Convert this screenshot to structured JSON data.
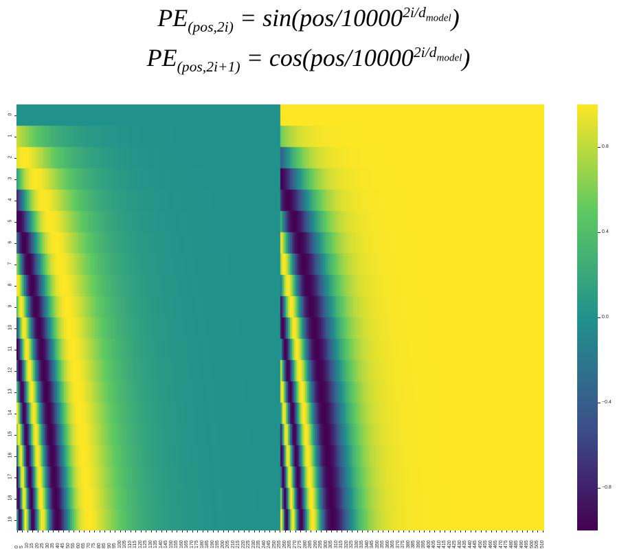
{
  "formulas": {
    "sin": {
      "lhs": "PE",
      "lhs_sub": "(pos,2i)",
      "rhs_fn": "= sin(pos/10000",
      "exp": "2i/d",
      "exp_sub": "model",
      "close": ")"
    },
    "cos": {
      "lhs": "PE",
      "lhs_sub": "(pos,2i+1)",
      "rhs_fn": "= cos(pos/10000",
      "exp": "2i/d",
      "exp_sub": "model",
      "close": ")"
    }
  },
  "chart_data": {
    "type": "heatmap",
    "title": "",
    "xlabel": "",
    "ylabel": "",
    "rows": 20,
    "columns": 512,
    "d_model": 512,
    "layout": "columns 0-255 = sin(pos/10000^(2i/d_model)), columns 256-511 = cos(pos/10000^(2i/d_model)), i = column index within half",
    "y_tick_labels": [
      "0",
      "1",
      "2",
      "3",
      "4",
      "5",
      "6",
      "7",
      "8",
      "9",
      "10",
      "11",
      "12",
      "13",
      "14",
      "15",
      "16",
      "17",
      "18",
      "19"
    ],
    "x_tick_labels": [
      "0",
      "5",
      "10",
      "15",
      "20",
      "25",
      "30",
      "35",
      "40",
      "45",
      "50",
      "55",
      "60",
      "65",
      "70",
      "75",
      "80",
      "85",
      "90",
      "95",
      "100",
      "105",
      "110",
      "115",
      "120",
      "125",
      "130",
      "135",
      "140",
      "145",
      "150",
      "155",
      "160",
      "165",
      "170",
      "175",
      "180",
      "185",
      "190",
      "195",
      "200",
      "205",
      "210",
      "215",
      "220",
      "225",
      "230",
      "235",
      "240",
      "245",
      "250",
      "255",
      "260",
      "265",
      "270",
      "275",
      "280",
      "285",
      "290",
      "295",
      "300",
      "305",
      "310",
      "315",
      "320",
      "325",
      "330",
      "335",
      "340",
      "345",
      "350",
      "355",
      "360",
      "365",
      "370",
      "375",
      "380",
      "385",
      "390",
      "395",
      "400",
      "405",
      "410",
      "415",
      "420",
      "425",
      "430",
      "435",
      "440",
      "445",
      "450",
      "455",
      "460",
      "465",
      "470",
      "475",
      "480",
      "485",
      "490",
      "495",
      "500",
      "505",
      "510"
    ],
    "colorbar": {
      "colormap": "viridis",
      "range": [
        -1,
        1
      ],
      "tick_labels": [
        "0.8",
        "0.4",
        "0.0",
        "−0.4",
        "−0.8"
      ],
      "tick_values": [
        0.8,
        0.4,
        0.0,
        -0.4,
        -0.8
      ]
    },
    "grid": false
  }
}
